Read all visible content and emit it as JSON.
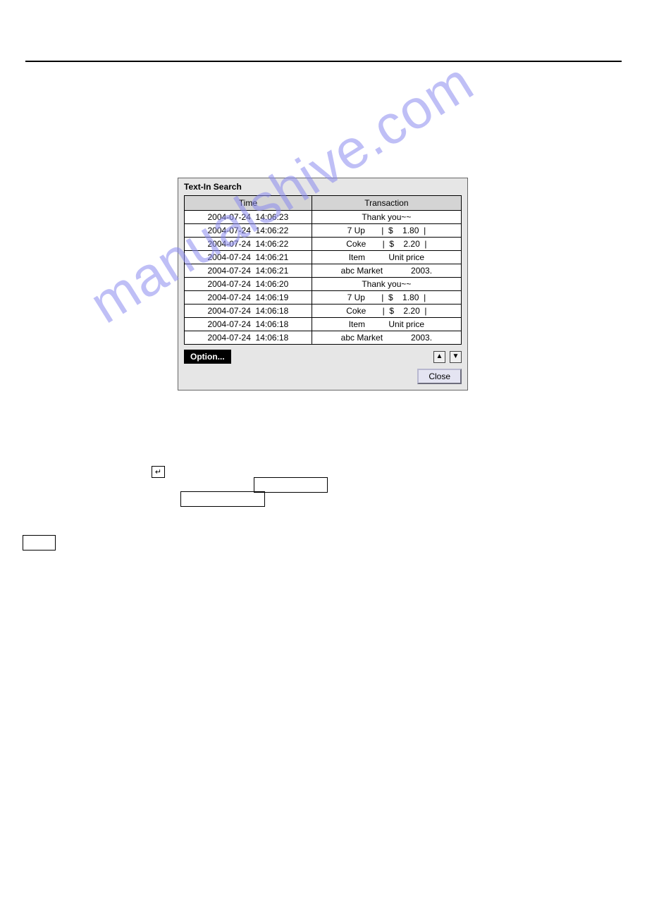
{
  "page": {
    "watermark": "manualshive.com"
  },
  "dialog": {
    "title": "Text-In Search",
    "columns": {
      "time": "Time",
      "transaction": "Transaction"
    },
    "rows": [
      {
        "time": "2004-07-24  14:06:23",
        "tx": "Thank you~~"
      },
      {
        "time": "2004-07-24  14:06:22",
        "tx": "7 Up       |  $    1.80  |"
      },
      {
        "time": "2004-07-24  14:06:22",
        "tx": "Coke       |  $    2.20  |"
      },
      {
        "time": "2004-07-24  14:06:21",
        "tx": "Item          Unit price"
      },
      {
        "time": "2004-07-24  14:06:21",
        "tx": "abc Market            2003."
      },
      {
        "time": "2004-07-24  14:06:20",
        "tx": "Thank you~~"
      },
      {
        "time": "2004-07-24  14:06:19",
        "tx": "7 Up       |  $    1.80  |"
      },
      {
        "time": "2004-07-24  14:06:18",
        "tx": "Coke       |  $    2.20  |"
      },
      {
        "time": "2004-07-24  14:06:18",
        "tx": "Item          Unit price"
      },
      {
        "time": "2004-07-24  14:06:18",
        "tx": "abc Market            2003."
      }
    ],
    "option_label": "Option...",
    "close_label": "Close",
    "up_glyph": "▲",
    "down_glyph": "▼",
    "enter_glyph": "↵"
  },
  "colors": {
    "dialog_bg": "#e6e6e6",
    "header_bg": "#d4d4d4",
    "option_bg": "#000000",
    "option_fg": "#ffffff",
    "close_bg": "#e4e4f2",
    "watermark": "#8b8bef"
  }
}
